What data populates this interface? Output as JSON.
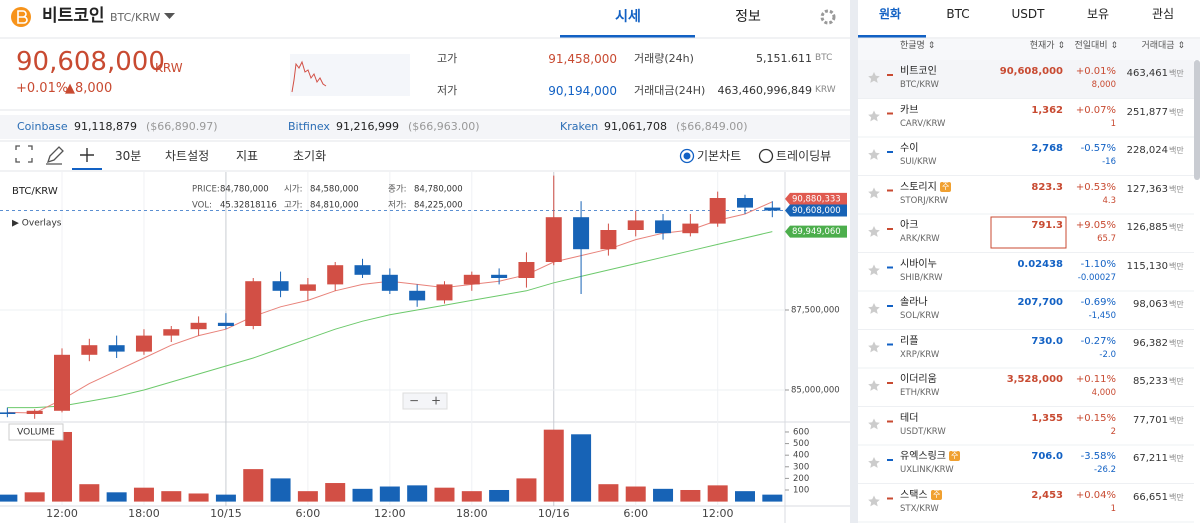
{
  "header": {
    "coin": "비트코인",
    "pair": "BTC/KRW",
    "tabs": [
      "시세",
      "정보"
    ]
  },
  "price": {
    "current": "90,608,000",
    "unit": "KRW",
    "change_pct": "+0.01%",
    "change": "▲8,000"
  },
  "stats": [
    {
      "label": "고가",
      "value": "91,458,000"
    },
    {
      "label": "저가",
      "value": "90,194,000"
    },
    {
      "label": "거래량(24h)",
      "value": "5,151.611",
      "unit": "BTC"
    },
    {
      "label": "거래대금(24H)",
      "value": "463,460,996,849",
      "unit": "KRW"
    }
  ],
  "exchanges": [
    {
      "name": "Coinbase",
      "price": "91,118,879",
      "usd": "($66,890.97)"
    },
    {
      "name": "Bitfinex",
      "price": "91,216,999",
      "usd": "($66,963.00)"
    },
    {
      "name": "Kraken",
      "price": "91,061,708",
      "usd": "($66,849.00)"
    }
  ],
  "toolbar": {
    "interval": "30분",
    "items": [
      "차트설정",
      "지표",
      "초기화"
    ],
    "modes": [
      "기본차트",
      "트레이딩뷰"
    ]
  },
  "chart_data": {
    "type": "candlestick",
    "title": "BTC/KRW",
    "info": [
      [
        "PRICE:",
        "84,780,000"
      ],
      [
        "시가:",
        "84,580,000"
      ],
      [
        "종가:",
        "84,780,000"
      ],
      [
        "VOL:",
        "45.32818116"
      ],
      [
        "고가:",
        "84,810,000"
      ],
      [
        "저가:",
        "84,225,000"
      ]
    ],
    "overlays": "▶ Overlays",
    "volume_label": "VOLUME",
    "zoom": [
      "−",
      "+"
    ],
    "up_color": "#d24f45",
    "down_color": "#1763b6",
    "ma_colors": [
      "#e8827a",
      "#6cc96b"
    ],
    "categories": [
      null,
      null,
      "12:00",
      null,
      null,
      "18:00",
      null,
      null,
      "10/15",
      null,
      null,
      "6:00",
      null,
      null,
      "12:00",
      null,
      null,
      "18:00",
      null,
      null,
      "10/16",
      null,
      null,
      "6:00",
      null,
      null,
      "12:00",
      null,
      null
    ],
    "ohlc": [
      [
        84300000,
        84450000,
        84150000,
        84250000
      ],
      [
        84250000,
        84400000,
        84100000,
        84350000
      ],
      [
        84350000,
        86300000,
        84300000,
        86100000
      ],
      [
        86100000,
        86600000,
        85900000,
        86400000
      ],
      [
        86400000,
        86700000,
        86000000,
        86200000
      ],
      [
        86200000,
        86900000,
        86100000,
        86700000
      ],
      [
        86700000,
        87000000,
        86500000,
        86900000
      ],
      [
        86900000,
        87300000,
        86700000,
        87100000
      ],
      [
        87100000,
        87400000,
        86900000,
        87000000
      ],
      [
        87000000,
        88500000,
        86900000,
        88400000
      ],
      [
        88400000,
        88700000,
        87900000,
        88100000
      ],
      [
        88100000,
        88500000,
        87800000,
        88300000
      ],
      [
        88300000,
        89000000,
        88100000,
        88900000
      ],
      [
        88900000,
        89100000,
        88500000,
        88600000
      ],
      [
        88600000,
        88800000,
        88000000,
        88100000
      ],
      [
        88100000,
        88300000,
        87600000,
        87800000
      ],
      [
        87800000,
        88400000,
        87700000,
        88300000
      ],
      [
        88300000,
        88700000,
        88100000,
        88600000
      ],
      [
        88600000,
        88800000,
        88300000,
        88500000
      ],
      [
        88500000,
        89300000,
        88200000,
        89000000
      ],
      [
        89000000,
        91700000,
        88900000,
        90400000
      ],
      [
        90400000,
        90900000,
        88000000,
        89400000
      ],
      [
        89400000,
        90200000,
        89200000,
        90000000
      ],
      [
        90000000,
        90600000,
        89800000,
        90300000
      ],
      [
        90300000,
        90500000,
        89700000,
        89900000
      ],
      [
        89900000,
        90500000,
        89800000,
        90200000
      ],
      [
        90200000,
        91200000,
        90100000,
        91000000
      ],
      [
        91000000,
        91100000,
        90500000,
        90700000
      ],
      [
        90700000,
        90900000,
        90400000,
        90608000
      ]
    ],
    "ma_short": [
      84300000,
      84280000,
      84700000,
      85200000,
      85600000,
      86000000,
      86400000,
      86700000,
      86900000,
      87300000,
      87600000,
      87800000,
      88100000,
      88300000,
      88400000,
      88300000,
      88200000,
      88300000,
      88400000,
      88600000,
      89000000,
      89200000,
      89400000,
      89700000,
      89900000,
      90000000,
      90300000,
      90500000,
      90880333
    ],
    "ma_long": [
      84450000,
      84450000,
      84500000,
      84650000,
      84800000,
      85000000,
      85250000,
      85500000,
      85750000,
      86000000,
      86300000,
      86600000,
      86900000,
      87150000,
      87350000,
      87500000,
      87650000,
      87800000,
      87950000,
      88100000,
      88350000,
      88550000,
      88750000,
      88950000,
      89150000,
      89350000,
      89550000,
      89750000,
      89949060
    ],
    "volume": [
      60,
      80,
      600,
      150,
      80,
      120,
      90,
      70,
      60,
      280,
      200,
      90,
      160,
      110,
      130,
      140,
      120,
      90,
      100,
      200,
      620,
      580,
      150,
      130,
      110,
      100,
      140,
      90,
      60
    ],
    "ylim": [
      84000000,
      91800000
    ],
    "yticks": [
      {
        "value": 85000000,
        "label": "85,000,000"
      },
      {
        "value": 87500000,
        "label": "87,500,000"
      }
    ],
    "y2lim": [
      0,
      630
    ],
    "y2ticks": [
      100,
      200,
      300,
      400,
      500,
      600
    ],
    "price_tags": [
      {
        "value": 90880333,
        "label": "90,880,333",
        "color": "#e05a50"
      },
      {
        "value": 90608000,
        "label": "90,608,000",
        "color": "#1763b6"
      },
      {
        "value": 89949060,
        "label": "89,949,060",
        "color": "#4cae4c"
      }
    ]
  },
  "market": {
    "tabs": [
      "원화",
      "BTC",
      "USDT",
      "보유",
      "관심"
    ],
    "columns": [
      "한글명 ⇕",
      "현재가 ⇕",
      "전일대비 ⇕",
      "거래대금 ⇕"
    ],
    "unit": "백만",
    "badge": "주",
    "rows": [
      {
        "name": "비트코인",
        "pair": "BTC/KRW",
        "price": "90,608,000",
        "pct": "+0.01%",
        "change": "8,000",
        "volume": "463,461",
        "dir": "up"
      },
      {
        "name": "카브",
        "pair": "CARV/KRW",
        "price": "1,362",
        "pct": "+0.07%",
        "change": "1",
        "volume": "251,877",
        "dir": "up"
      },
      {
        "name": "수이",
        "pair": "SUI/KRW",
        "price": "2,768",
        "pct": "-0.57%",
        "change": "-16",
        "volume": "228,024",
        "dir": "down"
      },
      {
        "name": "스토리지",
        "pair": "STORJ/KRW",
        "price": "823.3",
        "pct": "+0.53%",
        "change": "4.3",
        "volume": "127,363",
        "dir": "up",
        "badge": true
      },
      {
        "name": "아크",
        "pair": "ARK/KRW",
        "price": "791.3",
        "pct": "+9.05%",
        "change": "65.7",
        "volume": "126,885",
        "dir": "up",
        "boxed": true
      },
      {
        "name": "시바이누",
        "pair": "SHIB/KRW",
        "price": "0.02438",
        "pct": "-1.10%",
        "change": "-0.00027",
        "volume": "115,130",
        "dir": "down"
      },
      {
        "name": "솔라나",
        "pair": "SOL/KRW",
        "price": "207,700",
        "pct": "-0.69%",
        "change": "-1,450",
        "volume": "98,063",
        "dir": "down"
      },
      {
        "name": "리플",
        "pair": "XRP/KRW",
        "price": "730.0",
        "pct": "-0.27%",
        "change": "-2.0",
        "volume": "96,382",
        "dir": "down"
      },
      {
        "name": "이더리움",
        "pair": "ETH/KRW",
        "price": "3,528,000",
        "pct": "+0.11%",
        "change": "4,000",
        "volume": "85,233",
        "dir": "up"
      },
      {
        "name": "테더",
        "pair": "USDT/KRW",
        "price": "1,355",
        "pct": "+0.15%",
        "change": "2",
        "volume": "77,701",
        "dir": "up"
      },
      {
        "name": "유엑스링크",
        "pair": "UXLINK/KRW",
        "price": "706.0",
        "pct": "-3.58%",
        "change": "-26.2",
        "volume": "67,211",
        "dir": "down",
        "badge": true
      },
      {
        "name": "스택스",
        "pair": "STX/KRW",
        "price": "2,453",
        "pct": "+0.04%",
        "change": "1",
        "volume": "66,651",
        "dir": "up",
        "badge": true
      }
    ]
  }
}
